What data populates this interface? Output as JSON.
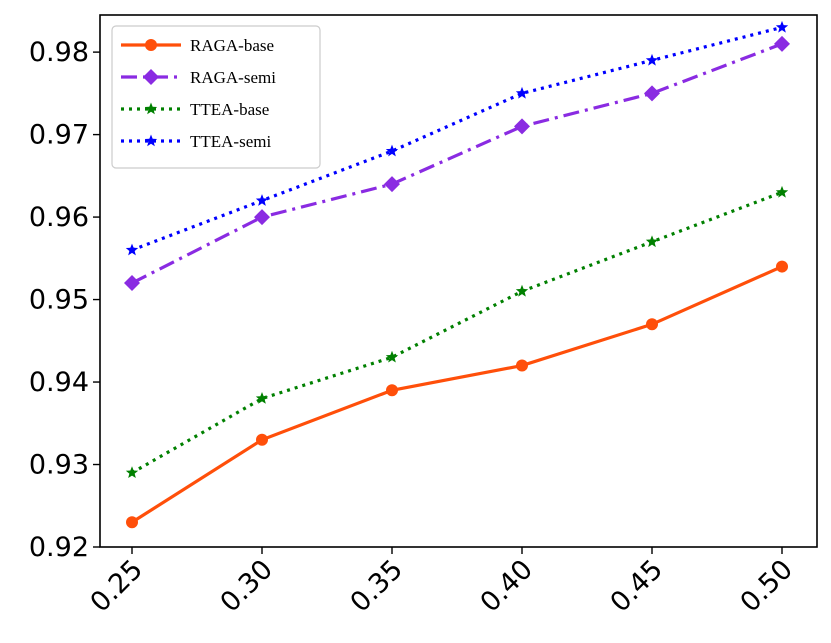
{
  "chart_data": {
    "type": "line",
    "title": "",
    "xlabel": "",
    "ylabel": "",
    "x": [
      0.25,
      0.3,
      0.35,
      0.4,
      0.45,
      0.5
    ],
    "x_tick_labels": [
      "0.25",
      "0.30",
      "0.35",
      "0.40",
      "0.45",
      "0.50"
    ],
    "y_ticks": [
      0.92,
      0.93,
      0.94,
      0.95,
      0.96,
      0.97,
      0.98
    ],
    "y_tick_labels": [
      "0.92",
      "0.93",
      "0.94",
      "0.95",
      "0.96",
      "0.97",
      "0.98"
    ],
    "ylim": [
      0.92,
      0.9845
    ],
    "grid": false,
    "legend_position": "top-left",
    "series": [
      {
        "name": "RAGA-base",
        "values": [
          0.923,
          0.933,
          0.939,
          0.942,
          0.947,
          0.954
        ],
        "color": "#ff4f0a",
        "line_style": "solid",
        "marker": "circle"
      },
      {
        "name": "RAGA-semi",
        "values": [
          0.952,
          0.96,
          0.964,
          0.971,
          0.975,
          0.981
        ],
        "color": "#8a2be2",
        "line_style": "dashdot",
        "marker": "diamond"
      },
      {
        "name": "TTEA-base",
        "values": [
          0.929,
          0.938,
          0.943,
          0.951,
          0.957,
          0.963
        ],
        "color": "#008000",
        "line_style": "dotted",
        "marker": "star"
      },
      {
        "name": "TTEA-semi",
        "values": [
          0.956,
          0.962,
          0.968,
          0.975,
          0.979,
          0.983
        ],
        "color": "#0000ff",
        "line_style": "dotted",
        "marker": "star"
      }
    ]
  }
}
